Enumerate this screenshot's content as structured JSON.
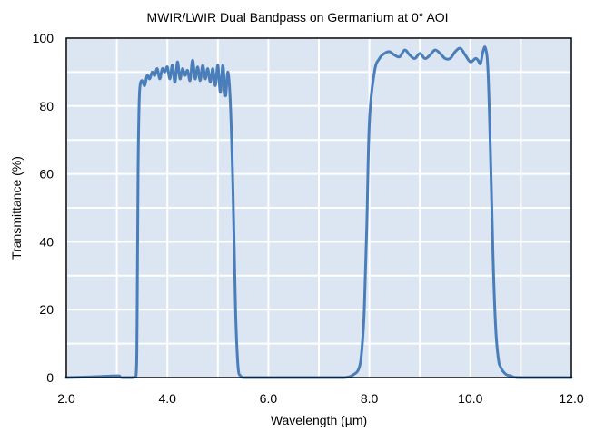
{
  "chart_data": {
    "type": "line",
    "title": "MWIR/LWIR Dual Bandpass on Germanium at 0° AOI",
    "xlabel": "Wavelength (µm)",
    "ylabel": "Transmittance (%)",
    "xlim": [
      2.0,
      12.0
    ],
    "ylim": [
      0,
      100
    ],
    "x_ticks": [
      2.0,
      4.0,
      6.0,
      8.0,
      10.0,
      12.0
    ],
    "x_tick_labels": [
      "2.0",
      "4.0",
      "6.0",
      "8.0",
      "10.0",
      "12.0"
    ],
    "y_ticks": [
      0,
      20,
      40,
      60,
      80,
      100
    ],
    "y_tick_labels": [
      "0",
      "20",
      "40",
      "60",
      "80",
      "100"
    ],
    "x_gridlines": [
      2.0,
      3.0,
      4.0,
      5.0,
      6.0,
      7.0,
      8.0,
      9.0,
      10.0,
      11.0,
      12.0
    ],
    "y_gridlines": [
      0,
      10,
      20,
      30,
      40,
      50,
      60,
      70,
      80,
      90,
      100
    ],
    "grid": true,
    "legend": "none",
    "colors": {
      "plot_background": "#dce6f2",
      "grid": "#ffffff",
      "line": "#4a7ebb",
      "frame": "#000000"
    },
    "series": [
      {
        "x": [
          2.0,
          2.5,
          3.0,
          3.05,
          3.1,
          3.3,
          3.38,
          3.4,
          3.42,
          3.44,
          3.46,
          3.5,
          3.55,
          3.6,
          3.65,
          3.7,
          3.75,
          3.8,
          3.85,
          3.9,
          3.95,
          4.0,
          4.05,
          4.1,
          4.15,
          4.2,
          4.25,
          4.3,
          4.35,
          4.4,
          4.45,
          4.5,
          4.55,
          4.6,
          4.65,
          4.7,
          4.75,
          4.8,
          4.85,
          4.9,
          4.95,
          5.0,
          5.05,
          5.1,
          5.15,
          5.2,
          5.25,
          5.3,
          5.35,
          5.4,
          5.45,
          5.5,
          5.55,
          5.6,
          5.7,
          6.0,
          7.0,
          7.5,
          7.7,
          7.8,
          7.85,
          7.9,
          7.95,
          8.0,
          8.1,
          8.2,
          8.3,
          8.4,
          8.5,
          8.6,
          8.7,
          8.8,
          8.9,
          9.0,
          9.1,
          9.2,
          9.3,
          9.4,
          9.5,
          9.6,
          9.7,
          9.8,
          9.9,
          10.0,
          10.1,
          10.15,
          10.2,
          10.25,
          10.3,
          10.35,
          10.4,
          10.45,
          10.5,
          10.55,
          10.6,
          10.7,
          10.8,
          11.0,
          12.0
        ],
        "y": [
          0,
          0.2,
          0.5,
          0.3,
          0,
          0,
          0.5,
          15,
          60,
          80,
          86,
          87.5,
          86,
          89,
          88,
          90,
          89,
          91,
          88,
          91,
          90,
          91.5,
          88,
          92,
          87,
          93,
          88,
          91,
          89,
          90.5,
          87.5,
          93.5,
          88,
          91.5,
          87.5,
          92,
          88,
          91,
          87,
          91,
          86,
          92,
          84,
          92,
          83,
          90,
          80,
          55,
          20,
          3,
          0.5,
          0,
          0,
          0,
          0,
          0,
          0,
          0,
          1,
          3,
          8,
          20,
          45,
          75,
          90,
          94,
          95.5,
          96,
          95,
          94.5,
          96.5,
          95,
          94,
          95.5,
          94,
          95,
          96.5,
          95.5,
          94,
          94,
          96,
          97,
          95,
          93,
          94,
          93.5,
          92.5,
          96,
          97,
          90,
          65,
          35,
          15,
          6,
          3,
          1,
          0.5,
          0,
          0
        ]
      }
    ]
  }
}
